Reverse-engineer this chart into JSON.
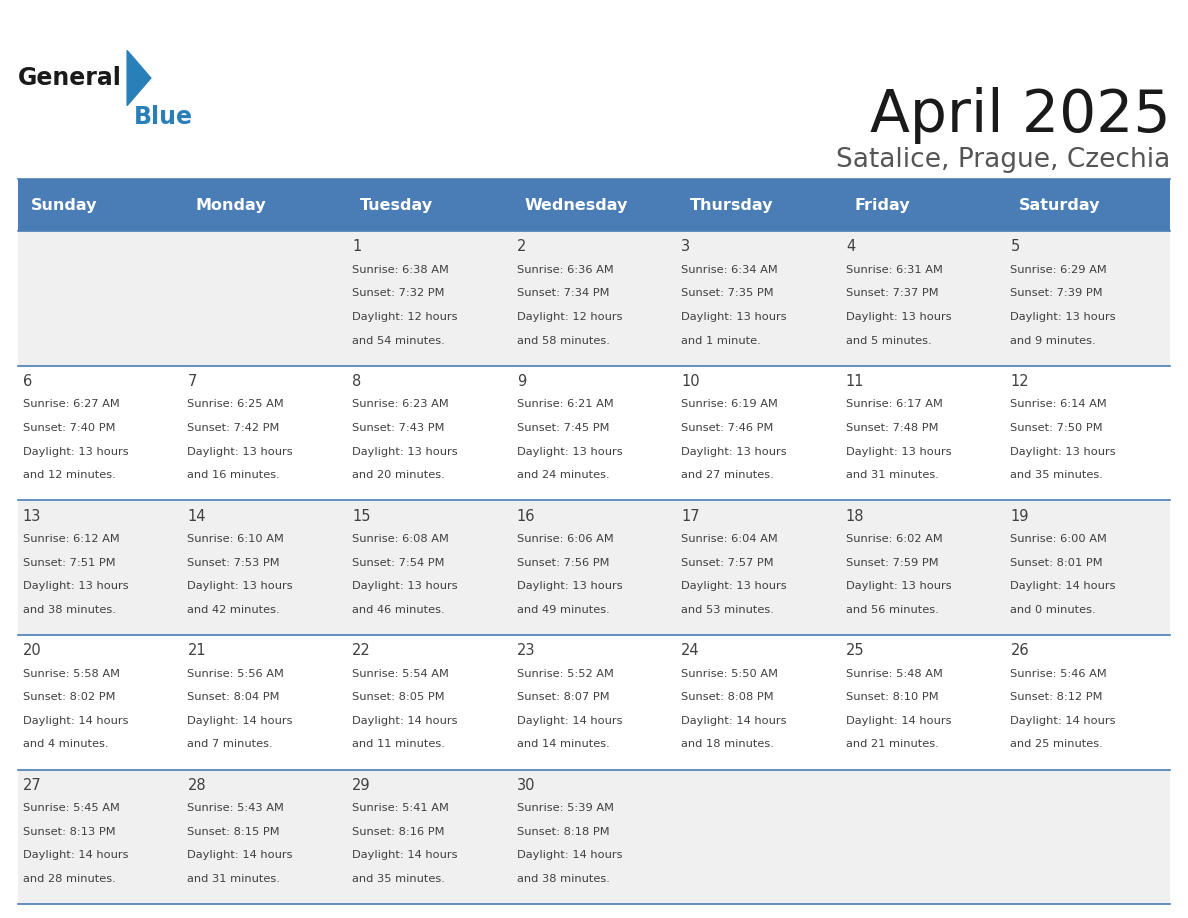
{
  "title": "April 2025",
  "subtitle": "Satalice, Prague, Czechia",
  "days_of_week": [
    "Sunday",
    "Monday",
    "Tuesday",
    "Wednesday",
    "Thursday",
    "Friday",
    "Saturday"
  ],
  "header_bg": "#4A7DB5",
  "header_text": "#FFFFFF",
  "row_bg_odd": "#F0F0F0",
  "row_bg_even": "#FFFFFF",
  "separator_color": "#4A7DB5",
  "text_color": "#404040",
  "title_color": "#1a1a1a",
  "subtitle_color": "#555555",
  "logo_general_color": "#1a1a1a",
  "logo_blue_color": "#2980B9",
  "calendar_data": [
    [
      {
        "day": null,
        "sunrise": null,
        "sunset": null,
        "daylight": null
      },
      {
        "day": null,
        "sunrise": null,
        "sunset": null,
        "daylight": null
      },
      {
        "day": 1,
        "sunrise": "6:38 AM",
        "sunset": "7:32 PM",
        "daylight": "12 hours\nand 54 minutes."
      },
      {
        "day": 2,
        "sunrise": "6:36 AM",
        "sunset": "7:34 PM",
        "daylight": "12 hours\nand 58 minutes."
      },
      {
        "day": 3,
        "sunrise": "6:34 AM",
        "sunset": "7:35 PM",
        "daylight": "13 hours\nand 1 minute."
      },
      {
        "day": 4,
        "sunrise": "6:31 AM",
        "sunset": "7:37 PM",
        "daylight": "13 hours\nand 5 minutes."
      },
      {
        "day": 5,
        "sunrise": "6:29 AM",
        "sunset": "7:39 PM",
        "daylight": "13 hours\nand 9 minutes."
      }
    ],
    [
      {
        "day": 6,
        "sunrise": "6:27 AM",
        "sunset": "7:40 PM",
        "daylight": "13 hours\nand 12 minutes."
      },
      {
        "day": 7,
        "sunrise": "6:25 AM",
        "sunset": "7:42 PM",
        "daylight": "13 hours\nand 16 minutes."
      },
      {
        "day": 8,
        "sunrise": "6:23 AM",
        "sunset": "7:43 PM",
        "daylight": "13 hours\nand 20 minutes."
      },
      {
        "day": 9,
        "sunrise": "6:21 AM",
        "sunset": "7:45 PM",
        "daylight": "13 hours\nand 24 minutes."
      },
      {
        "day": 10,
        "sunrise": "6:19 AM",
        "sunset": "7:46 PM",
        "daylight": "13 hours\nand 27 minutes."
      },
      {
        "day": 11,
        "sunrise": "6:17 AM",
        "sunset": "7:48 PM",
        "daylight": "13 hours\nand 31 minutes."
      },
      {
        "day": 12,
        "sunrise": "6:14 AM",
        "sunset": "7:50 PM",
        "daylight": "13 hours\nand 35 minutes."
      }
    ],
    [
      {
        "day": 13,
        "sunrise": "6:12 AM",
        "sunset": "7:51 PM",
        "daylight": "13 hours\nand 38 minutes."
      },
      {
        "day": 14,
        "sunrise": "6:10 AM",
        "sunset": "7:53 PM",
        "daylight": "13 hours\nand 42 minutes."
      },
      {
        "day": 15,
        "sunrise": "6:08 AM",
        "sunset": "7:54 PM",
        "daylight": "13 hours\nand 46 minutes."
      },
      {
        "day": 16,
        "sunrise": "6:06 AM",
        "sunset": "7:56 PM",
        "daylight": "13 hours\nand 49 minutes."
      },
      {
        "day": 17,
        "sunrise": "6:04 AM",
        "sunset": "7:57 PM",
        "daylight": "13 hours\nand 53 minutes."
      },
      {
        "day": 18,
        "sunrise": "6:02 AM",
        "sunset": "7:59 PM",
        "daylight": "13 hours\nand 56 minutes."
      },
      {
        "day": 19,
        "sunrise": "6:00 AM",
        "sunset": "8:01 PM",
        "daylight": "14 hours\nand 0 minutes."
      }
    ],
    [
      {
        "day": 20,
        "sunrise": "5:58 AM",
        "sunset": "8:02 PM",
        "daylight": "14 hours\nand 4 minutes."
      },
      {
        "day": 21,
        "sunrise": "5:56 AM",
        "sunset": "8:04 PM",
        "daylight": "14 hours\nand 7 minutes."
      },
      {
        "day": 22,
        "sunrise": "5:54 AM",
        "sunset": "8:05 PM",
        "daylight": "14 hours\nand 11 minutes."
      },
      {
        "day": 23,
        "sunrise": "5:52 AM",
        "sunset": "8:07 PM",
        "daylight": "14 hours\nand 14 minutes."
      },
      {
        "day": 24,
        "sunrise": "5:50 AM",
        "sunset": "8:08 PM",
        "daylight": "14 hours\nand 18 minutes."
      },
      {
        "day": 25,
        "sunrise": "5:48 AM",
        "sunset": "8:10 PM",
        "daylight": "14 hours\nand 21 minutes."
      },
      {
        "day": 26,
        "sunrise": "5:46 AM",
        "sunset": "8:12 PM",
        "daylight": "14 hours\nand 25 minutes."
      }
    ],
    [
      {
        "day": 27,
        "sunrise": "5:45 AM",
        "sunset": "8:13 PM",
        "daylight": "14 hours\nand 28 minutes."
      },
      {
        "day": 28,
        "sunrise": "5:43 AM",
        "sunset": "8:15 PM",
        "daylight": "14 hours\nand 31 minutes."
      },
      {
        "day": 29,
        "sunrise": "5:41 AM",
        "sunset": "8:16 PM",
        "daylight": "14 hours\nand 35 minutes."
      },
      {
        "day": 30,
        "sunrise": "5:39 AM",
        "sunset": "8:18 PM",
        "daylight": "14 hours\nand 38 minutes."
      },
      {
        "day": null,
        "sunrise": null,
        "sunset": null,
        "daylight": null
      },
      {
        "day": null,
        "sunrise": null,
        "sunset": null,
        "daylight": null
      },
      {
        "day": null,
        "sunrise": null,
        "sunset": null,
        "daylight": null
      }
    ]
  ]
}
